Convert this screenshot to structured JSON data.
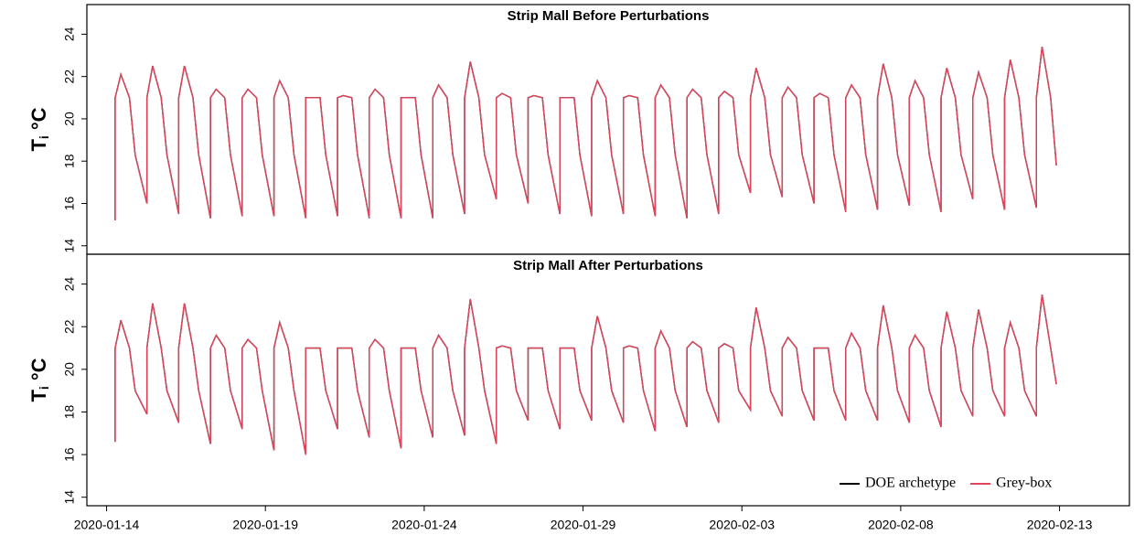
{
  "chart_data": [
    {
      "type": "line",
      "title": "Strip Mall Before Perturbations",
      "ylabel": {
        "main": "T",
        "sub": "i",
        "unit": "°C"
      },
      "xlim": [
        -0.62,
        32.2
      ],
      "ylim": [
        13.6,
        25.4
      ],
      "yticks": [
        14,
        16,
        18,
        20,
        22,
        24
      ],
      "x": [
        0.27,
        0.27,
        0.45,
        0.72,
        0.9,
        1.27,
        1.27,
        1.45,
        1.72,
        1.9,
        2.27,
        2.27,
        2.45,
        2.72,
        2.9,
        3.27,
        3.27,
        3.45,
        3.72,
        3.9,
        4.27,
        4.27,
        4.45,
        4.72,
        4.9,
        5.27,
        5.27,
        5.45,
        5.72,
        5.9,
        6.27,
        6.27,
        6.45,
        6.72,
        6.9,
        7.27,
        7.27,
        7.45,
        7.72,
        7.9,
        8.27,
        8.27,
        8.45,
        8.72,
        8.9,
        9.27,
        9.27,
        9.45,
        9.72,
        9.9,
        10.27,
        10.27,
        10.45,
        10.72,
        10.9,
        11.27,
        11.27,
        11.45,
        11.72,
        11.9,
        12.27,
        12.27,
        12.45,
        12.72,
        12.9,
        13.27,
        13.27,
        13.45,
        13.72,
        13.9,
        14.27,
        14.27,
        14.45,
        14.72,
        14.9,
        15.27,
        15.27,
        15.45,
        15.72,
        15.9,
        16.27,
        16.27,
        16.45,
        16.72,
        16.9,
        17.27,
        17.27,
        17.45,
        17.72,
        17.9,
        18.27,
        18.27,
        18.45,
        18.72,
        18.9,
        19.27,
        19.27,
        19.45,
        19.72,
        19.9,
        20.27,
        20.27,
        20.45,
        20.72,
        20.9,
        21.27,
        21.27,
        21.45,
        21.72,
        21.9,
        22.27,
        22.27,
        22.45,
        22.72,
        22.9,
        23.27,
        23.27,
        23.45,
        23.72,
        23.9,
        24.27,
        24.27,
        24.45,
        24.72,
        24.9,
        25.27,
        25.27,
        25.45,
        25.72,
        25.9,
        26.27,
        26.27,
        26.45,
        26.72,
        26.9,
        27.27,
        27.27,
        27.45,
        27.72,
        27.9,
        28.27,
        28.27,
        28.45,
        28.72,
        28.9,
        29.27,
        29.27,
        29.45,
        29.72,
        29.9
      ],
      "series": [
        {
          "name": "DOE archetype",
          "color": "#000000",
          "values": [
            15.2,
            21,
            22.1,
            21,
            18.3,
            16.0,
            21,
            22.5,
            21,
            18.3,
            15.5,
            21,
            22.5,
            21,
            18.3,
            15.3,
            21,
            21.4,
            21,
            18.3,
            15.4,
            21,
            21.4,
            21,
            18.3,
            15.4,
            21,
            21.8,
            21,
            18.3,
            15.3,
            21,
            21.0,
            21,
            18.3,
            15.4,
            21,
            21.1,
            21,
            18.3,
            15.3,
            21,
            21.4,
            21,
            18.3,
            15.3,
            21,
            21.0,
            21,
            18.3,
            15.3,
            21,
            21.6,
            21,
            18.3,
            15.5,
            21,
            22.7,
            21,
            18.3,
            16.2,
            21,
            21.2,
            21,
            18.3,
            16.0,
            21,
            21.1,
            21,
            18.3,
            15.5,
            21,
            21.0,
            21,
            18.3,
            15.4,
            21,
            21.8,
            21,
            18.3,
            15.5,
            21,
            21.1,
            21,
            18.3,
            15.4,
            21,
            21.6,
            21,
            18.3,
            15.3,
            21,
            21.4,
            21,
            18.3,
            15.5,
            21,
            21.3,
            21,
            18.3,
            16.5,
            21,
            22.4,
            21,
            18.3,
            16.3,
            21,
            21.5,
            21,
            18.3,
            16.0,
            21,
            21.2,
            21,
            18.3,
            15.6,
            21,
            21.6,
            21,
            18.3,
            15.7,
            21,
            22.6,
            21,
            18.3,
            15.9,
            21,
            21.8,
            21,
            18.3,
            15.6,
            21,
            22.4,
            21,
            18.3,
            16.2,
            21,
            22.2,
            21,
            18.3,
            15.7,
            21,
            22.8,
            21,
            18.3,
            15.8,
            21,
            23.4,
            21,
            17.8
          ]
        },
        {
          "name": "Grey-box",
          "color": "#e0455c",
          "values": [
            15.2,
            21,
            22.1,
            21,
            18.3,
            16.0,
            21,
            22.5,
            21,
            18.3,
            15.5,
            21,
            22.5,
            21,
            18.3,
            15.3,
            21,
            21.4,
            21,
            18.3,
            15.4,
            21,
            21.4,
            21,
            18.3,
            15.4,
            21,
            21.8,
            21,
            18.3,
            15.3,
            21,
            21.0,
            21,
            18.3,
            15.4,
            21,
            21.1,
            21,
            18.3,
            15.3,
            21,
            21.4,
            21,
            18.3,
            15.3,
            21,
            21.0,
            21,
            18.3,
            15.3,
            21,
            21.6,
            21,
            18.3,
            15.5,
            21,
            22.7,
            21,
            18.3,
            16.2,
            21,
            21.2,
            21,
            18.3,
            16.0,
            21,
            21.1,
            21,
            18.3,
            15.5,
            21,
            21.0,
            21,
            18.3,
            15.4,
            21,
            21.8,
            21,
            18.3,
            15.5,
            21,
            21.1,
            21,
            18.3,
            15.4,
            21,
            21.6,
            21,
            18.3,
            15.3,
            21,
            21.4,
            21,
            18.3,
            15.5,
            21,
            21.3,
            21,
            18.3,
            16.5,
            21,
            22.4,
            21,
            18.3,
            16.3,
            21,
            21.5,
            21,
            18.3,
            16.0,
            21,
            21.2,
            21,
            18.3,
            15.6,
            21,
            21.6,
            21,
            18.3,
            15.7,
            21,
            22.6,
            21,
            18.3,
            15.9,
            21,
            21.8,
            21,
            18.3,
            15.6,
            21,
            22.4,
            21,
            18.3,
            16.2,
            21,
            22.2,
            21,
            18.3,
            15.7,
            21,
            22.8,
            21,
            18.3,
            15.8,
            21,
            23.4,
            21,
            17.8
          ]
        }
      ]
    },
    {
      "type": "line",
      "title": "Strip Mall After Perturbations",
      "ylabel": {
        "main": "T",
        "sub": "i",
        "unit": "°C"
      },
      "xlim": [
        -0.62,
        32.2
      ],
      "ylim": [
        13.6,
        25.4
      ],
      "yticks": [
        14,
        16,
        18,
        20,
        22,
        24
      ],
      "xticks": [
        {
          "value": 0,
          "label": "2020-01-14"
        },
        {
          "value": 5,
          "label": "2020-01-19"
        },
        {
          "value": 10,
          "label": "2020-01-24"
        },
        {
          "value": 15,
          "label": "2020-01-29"
        },
        {
          "value": 20,
          "label": "2020-02-03"
        },
        {
          "value": 25,
          "label": "2020-02-08"
        },
        {
          "value": 30,
          "label": "2020-02-13"
        }
      ],
      "legend": "bottom-right",
      "x": [
        0.27,
        0.27,
        0.45,
        0.72,
        0.9,
        1.27,
        1.27,
        1.45,
        1.72,
        1.9,
        2.27,
        2.27,
        2.45,
        2.72,
        2.9,
        3.27,
        3.27,
        3.45,
        3.72,
        3.9,
        4.27,
        4.27,
        4.45,
        4.72,
        4.9,
        5.27,
        5.27,
        5.45,
        5.72,
        5.9,
        6.27,
        6.27,
        6.45,
        6.72,
        6.9,
        7.27,
        7.27,
        7.45,
        7.72,
        7.9,
        8.27,
        8.27,
        8.45,
        8.72,
        8.9,
        9.27,
        9.27,
        9.45,
        9.72,
        9.9,
        10.27,
        10.27,
        10.45,
        10.72,
        10.9,
        11.27,
        11.27,
        11.45,
        11.72,
        11.9,
        12.27,
        12.27,
        12.45,
        12.72,
        12.9,
        13.27,
        13.27,
        13.45,
        13.72,
        13.9,
        14.27,
        14.27,
        14.45,
        14.72,
        14.9,
        15.27,
        15.27,
        15.45,
        15.72,
        15.9,
        16.27,
        16.27,
        16.45,
        16.72,
        16.9,
        17.27,
        17.27,
        17.45,
        17.72,
        17.9,
        18.27,
        18.27,
        18.45,
        18.72,
        18.9,
        19.27,
        19.27,
        19.45,
        19.72,
        19.9,
        20.27,
        20.27,
        20.45,
        20.72,
        20.9,
        21.27,
        21.27,
        21.45,
        21.72,
        21.9,
        22.27,
        22.27,
        22.45,
        22.72,
        22.9,
        23.27,
        23.27,
        23.45,
        23.72,
        23.9,
        24.27,
        24.27,
        24.45,
        24.72,
        24.9,
        25.27,
        25.27,
        25.45,
        25.72,
        25.9,
        26.27,
        26.27,
        26.45,
        26.72,
        26.9,
        27.27,
        27.27,
        27.45,
        27.72,
        27.9,
        28.27,
        28.27,
        28.45,
        28.72,
        28.9,
        29.27,
        29.27,
        29.45,
        29.72,
        29.9
      ],
      "series": [
        {
          "name": "DOE archetype",
          "color": "#000000",
          "values": [
            16.6,
            21,
            22.3,
            21,
            19.0,
            17.9,
            21,
            23.1,
            21,
            19.0,
            17.5,
            21,
            23.1,
            21,
            19.0,
            16.5,
            21,
            21.6,
            21,
            19.0,
            17.2,
            21,
            21.4,
            21,
            19.0,
            16.2,
            21,
            22.2,
            21,
            19.0,
            16.0,
            21,
            21.0,
            21,
            19.0,
            17.2,
            21,
            21.0,
            21,
            19.0,
            16.8,
            21,
            21.4,
            21,
            19.0,
            16.3,
            21,
            21.0,
            21,
            19.0,
            16.8,
            21,
            21.6,
            21,
            19.0,
            16.9,
            21,
            23.3,
            21,
            19.0,
            16.5,
            21,
            21.1,
            21,
            19.0,
            17.6,
            21,
            21.0,
            21,
            19.0,
            17.2,
            21,
            21.0,
            21,
            19.0,
            17.6,
            21,
            22.5,
            21,
            19.0,
            17.5,
            21,
            21.1,
            21,
            19.0,
            17.1,
            21,
            21.8,
            21,
            19.0,
            17.3,
            21,
            21.3,
            21,
            19.0,
            17.5,
            21,
            21.2,
            21,
            19.0,
            18.1,
            21,
            22.9,
            21,
            19.0,
            17.8,
            21,
            21.5,
            21,
            19.0,
            17.6,
            21,
            21.0,
            21,
            19.0,
            17.6,
            21,
            21.7,
            21,
            19.0,
            17.6,
            21,
            23.0,
            21,
            19.0,
            17.5,
            21,
            21.6,
            21,
            19.0,
            17.3,
            21,
            22.7,
            21,
            19.0,
            17.8,
            21,
            22.8,
            21,
            19.0,
            17.8,
            21,
            22.2,
            21,
            19.0,
            17.8,
            21,
            23.5,
            21,
            19.3
          ]
        },
        {
          "name": "Grey-box",
          "color": "#e0455c",
          "values": [
            16.6,
            21,
            22.3,
            21,
            19.0,
            17.9,
            21,
            23.1,
            21,
            19.0,
            17.5,
            21,
            23.1,
            21,
            19.0,
            16.5,
            21,
            21.6,
            21,
            19.0,
            17.2,
            21,
            21.4,
            21,
            19.0,
            16.2,
            21,
            22.2,
            21,
            19.0,
            16.0,
            21,
            21.0,
            21,
            19.0,
            17.2,
            21,
            21.0,
            21,
            19.0,
            16.8,
            21,
            21.4,
            21,
            19.0,
            16.3,
            21,
            21.0,
            21,
            19.0,
            16.8,
            21,
            21.6,
            21,
            19.0,
            16.9,
            21,
            23.3,
            21,
            19.0,
            16.5,
            21,
            21.1,
            21,
            19.0,
            17.6,
            21,
            21.0,
            21,
            19.0,
            17.2,
            21,
            21.0,
            21,
            19.0,
            17.6,
            21,
            22.5,
            21,
            19.0,
            17.5,
            21,
            21.1,
            21,
            19.0,
            17.1,
            21,
            21.8,
            21,
            19.0,
            17.3,
            21,
            21.3,
            21,
            19.0,
            17.5,
            21,
            21.2,
            21,
            19.0,
            18.1,
            21,
            22.9,
            21,
            19.0,
            17.8,
            21,
            21.5,
            21,
            19.0,
            17.6,
            21,
            21.0,
            21,
            19.0,
            17.6,
            21,
            21.7,
            21,
            19.0,
            17.6,
            21,
            23.0,
            21,
            19.0,
            17.5,
            21,
            21.6,
            21,
            19.0,
            17.3,
            21,
            22.7,
            21,
            19.0,
            17.8,
            21,
            22.8,
            21,
            19.0,
            17.8,
            21,
            22.2,
            21,
            19.0,
            17.8,
            21,
            23.5,
            21,
            19.3
          ]
        }
      ]
    }
  ]
}
